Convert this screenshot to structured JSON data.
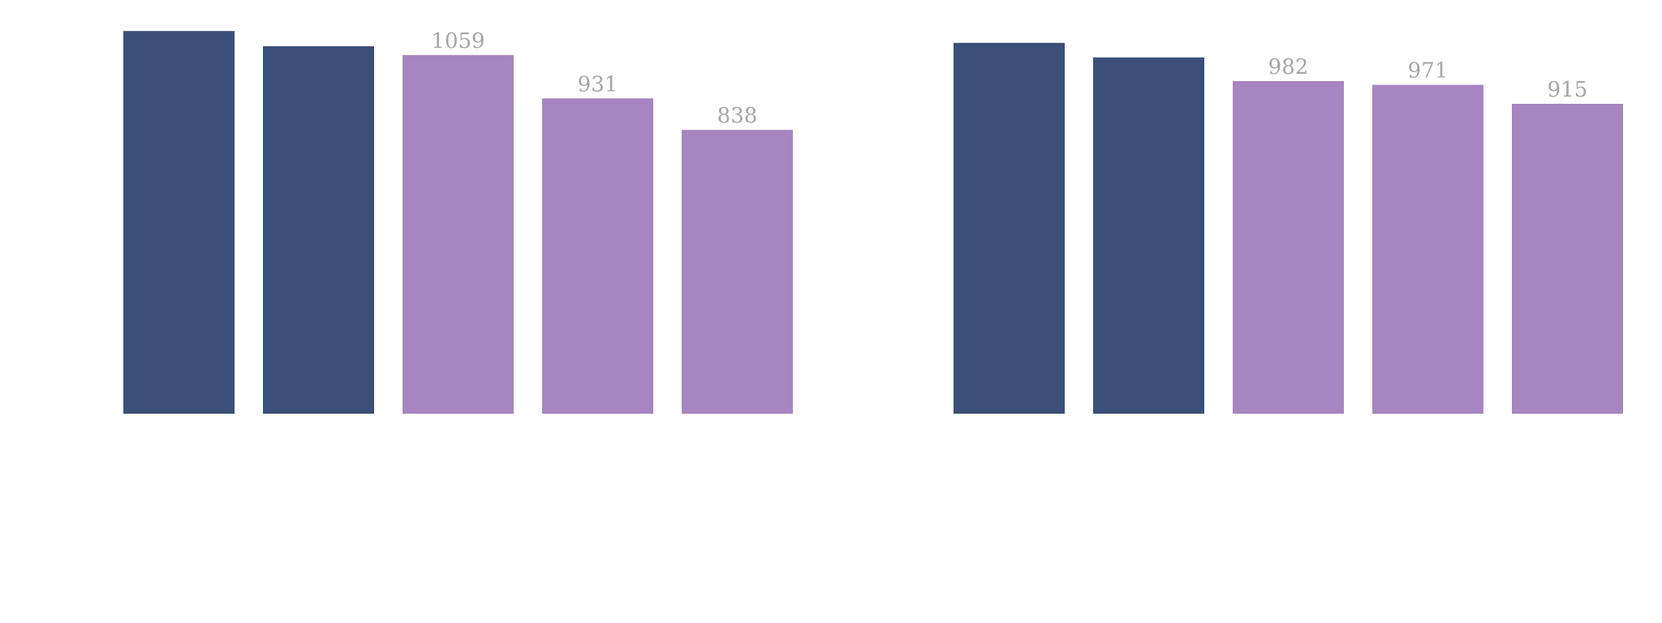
{
  "chart_data": [
    {
      "type": "bar",
      "categories": [
        "",
        "",
        "",
        "",
        ""
      ],
      "values": [
        1130,
        1085,
        1059,
        931,
        838
      ],
      "data_labels": [
        "",
        "",
        "1059",
        "931",
        "838"
      ],
      "bar_colors": [
        "#3b4f78",
        "#3b4f78",
        "#a785c1",
        "#a785c1",
        "#a785c1"
      ],
      "title": "",
      "xlabel": "",
      "ylabel": "",
      "ylim": [
        0,
        1200
      ],
      "grid": false,
      "legend": "none"
    },
    {
      "type": "bar",
      "categories": [
        "",
        "",
        "",
        "",
        ""
      ],
      "values": [
        1095,
        1052,
        982,
        971,
        915
      ],
      "data_labels": [
        "",
        "",
        "982",
        "971",
        "915"
      ],
      "bar_colors": [
        "#3b4f78",
        "#3b4f78",
        "#a785c1",
        "#a785c1",
        "#a785c1"
      ],
      "title": "",
      "xlabel": "",
      "ylabel": "",
      "ylim": [
        0,
        1200
      ],
      "grid": false,
      "legend": "none"
    }
  ]
}
